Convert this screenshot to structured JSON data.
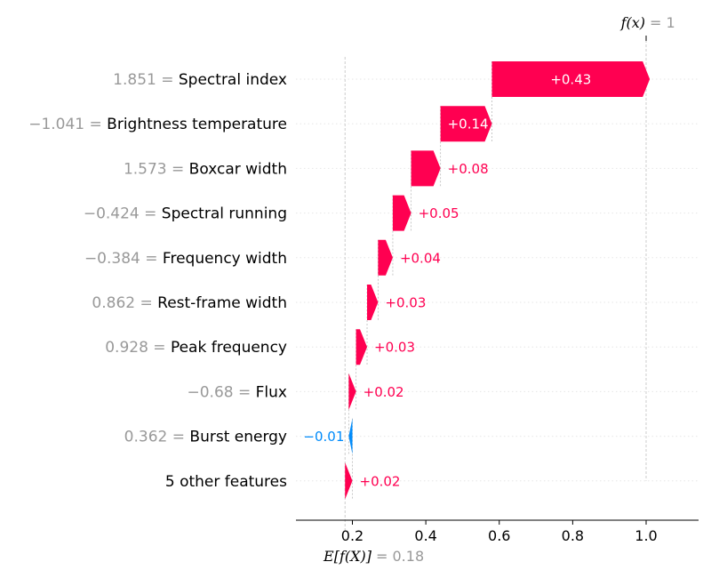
{
  "chart_data": {
    "type": "bar",
    "subtype": "waterfall",
    "base_value": 0.18,
    "final_value": 1,
    "base_label": "E[f(X)]",
    "base_value_text": "= 0.18",
    "final_label": "f(x)",
    "final_value_text": "= 1",
    "xlim": [
      0.05,
      1.14
    ],
    "xticks": [
      0.2,
      0.4,
      0.6,
      0.8,
      1.0
    ],
    "xtick_labels": [
      "0.2",
      "0.4",
      "0.6",
      "0.8",
      "1.0"
    ],
    "colors": {
      "positive": "#ff0051",
      "negative": "#008bfb",
      "value_text": "#999999",
      "grid": "#cccccc"
    },
    "features": [
      {
        "name": "Spectral index",
        "value_text": "1.851 =",
        "contribution": 0.43,
        "label": "+0.43"
      },
      {
        "name": "Brightness temperature",
        "value_text": "−1.041 =",
        "contribution": 0.14,
        "label": "+0.14"
      },
      {
        "name": "Boxcar width",
        "value_text": "1.573 =",
        "contribution": 0.08,
        "label": "+0.08"
      },
      {
        "name": "Spectral running",
        "value_text": "−0.424 =",
        "contribution": 0.05,
        "label": "+0.05"
      },
      {
        "name": "Frequency width",
        "value_text": "−0.384 =",
        "contribution": 0.04,
        "label": "+0.04"
      },
      {
        "name": "Rest-frame width",
        "value_text": "0.862 =",
        "contribution": 0.03,
        "label": "+0.03"
      },
      {
        "name": "Peak frequency",
        "value_text": "0.928 =",
        "contribution": 0.03,
        "label": "+0.03"
      },
      {
        "name": "Flux",
        "value_text": "−0.68 =",
        "contribution": 0.02,
        "label": "+0.02"
      },
      {
        "name": "Burst energy",
        "value_text": "0.362 =",
        "contribution": -0.01,
        "label": "−0.01"
      },
      {
        "name": "5 other features",
        "value_text": "",
        "contribution": 0.02,
        "label": "+0.02"
      }
    ]
  }
}
